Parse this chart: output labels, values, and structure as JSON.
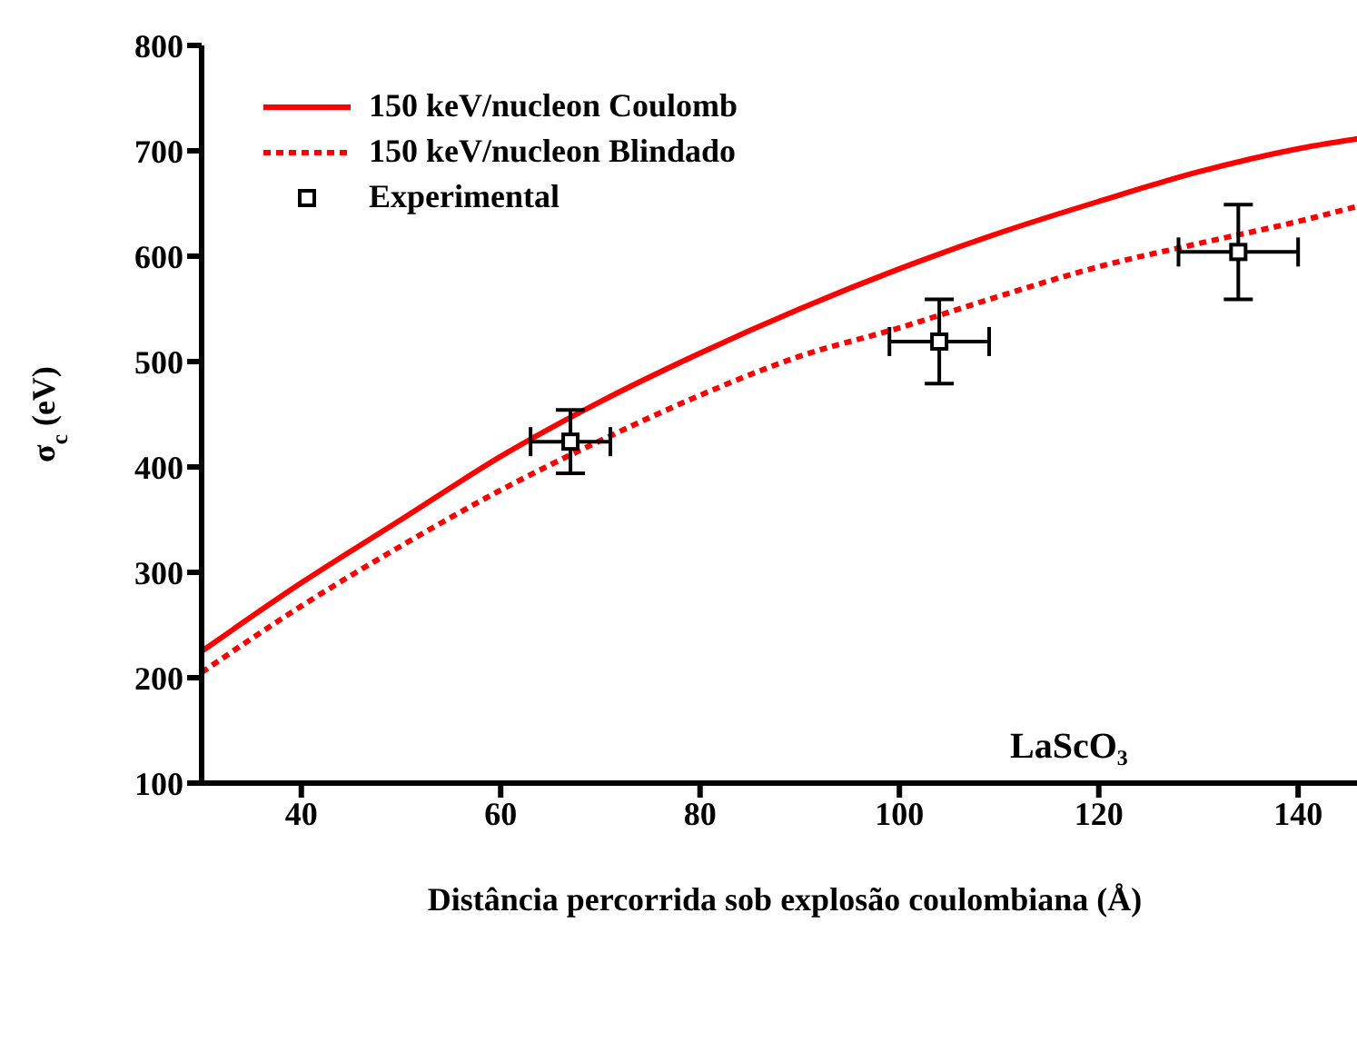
{
  "chart_data": {
    "type": "line",
    "xlabel": "Distância percorrida sob explosão coulombiana (Å)",
    "ylabel": "σ$_{c}$ (eV)",
    "annotations": [
      "LaScO₃"
    ],
    "xlim": [
      30,
      147
    ],
    "xticks": [
      40,
      60,
      80,
      100,
      120,
      140
    ],
    "ylim": [
      100,
      800
    ],
    "yticks": [
      100,
      200,
      300,
      400,
      500,
      600,
      700,
      800
    ],
    "legend": "top left",
    "series": [
      {
        "name": "150 keV/nucleon Coulomb",
        "line_style": "solid",
        "color": "#ff0000",
        "x": [
          30,
          40,
          50,
          60,
          70,
          80,
          90,
          100,
          110,
          120,
          130,
          140,
          147
        ],
        "values": [
          225,
          290,
          350,
          410,
          462,
          508,
          550,
          588,
          622,
          652,
          680,
          702,
          713
        ]
      },
      {
        "name": "150 keV/nucleon Blindado",
        "line_style": "dotted",
        "color": "#ff0000",
        "x": [
          30,
          40,
          50,
          60,
          70,
          80,
          90,
          100,
          110,
          120,
          130,
          140,
          147
        ],
        "values": [
          205,
          268,
          325,
          378,
          425,
          468,
          505,
          532,
          562,
          590,
          612,
          633,
          650
        ]
      },
      {
        "name": "Experimental",
        "type": "scatter",
        "marker": "square",
        "color": "#000000",
        "x": [
          67,
          104,
          134
        ],
        "values": [
          424,
          519,
          604
        ],
        "errors": [
          30,
          40,
          45
        ],
        "xerrors": [
          4,
          5,
          6
        ]
      }
    ]
  }
}
